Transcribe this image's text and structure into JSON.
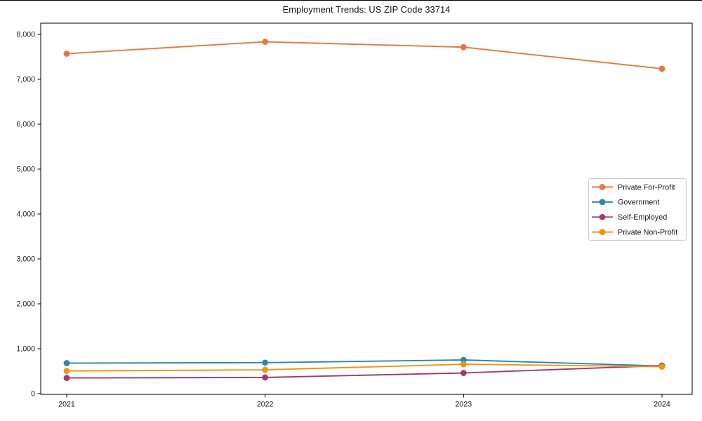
{
  "chart_data": {
    "type": "line",
    "title": "Employment Trends: US ZIP Code 33714",
    "x_categories": [
      "2021",
      "2022",
      "2023",
      "2024"
    ],
    "series": [
      {
        "name": "Private For-Profit",
        "color": "#E8773F",
        "values": [
          7570,
          7835,
          7715,
          7235
        ]
      },
      {
        "name": "Government",
        "color": "#2E86AB",
        "values": [
          680,
          690,
          750,
          615
        ]
      },
      {
        "name": "Self-Employed",
        "color": "#A23B72",
        "values": [
          350,
          360,
          460,
          625
        ]
      },
      {
        "name": "Private Non-Profit",
        "color": "#F09410",
        "values": [
          505,
          530,
          655,
          600
        ]
      }
    ],
    "xlabel": "",
    "ylabel": "",
    "ylim": [
      0,
      8250
    ],
    "yticks": [
      0,
      1000,
      2000,
      3000,
      4000,
      5000,
      6000,
      7000,
      8000
    ],
    "ytick_labels": [
      "0",
      "1,000",
      "2,000",
      "3,000",
      "4,000",
      "5,000",
      "6,000",
      "7,000",
      "8,000"
    ],
    "grid": false,
    "marker": "circle",
    "legend": {
      "position": "middle-right",
      "border_color": "#cccccc",
      "background": "#ffffff"
    },
    "frame_color": "#000000"
  }
}
